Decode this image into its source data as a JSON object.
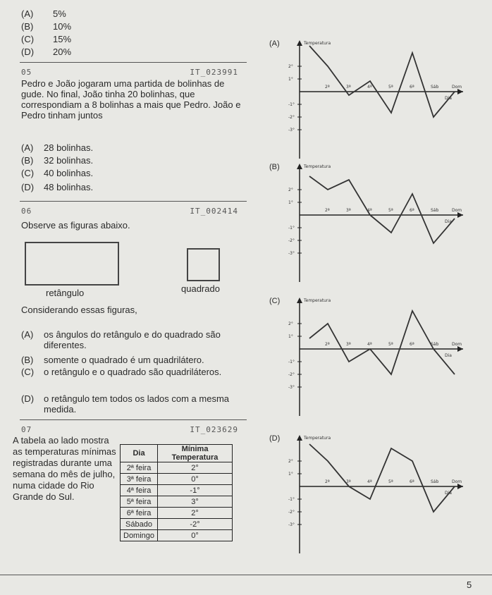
{
  "q4_options": [
    {
      "letter": "(A)",
      "text": "5%"
    },
    {
      "letter": "(B)",
      "text": "10%"
    },
    {
      "letter": "(C)",
      "text": "15%"
    },
    {
      "letter": "(D)",
      "text": "20%"
    }
  ],
  "q5": {
    "number": "05",
    "code": "IT_023991",
    "text": "Pedro e João jogaram uma partida de bolinhas de gude. No final, João tinha 20 bolinhas, que correspondiam a 8 bolinhas a mais que Pedro. João e Pedro tinham juntos",
    "options": [
      {
        "letter": "(A)",
        "text": "28 bolinhas."
      },
      {
        "letter": "(B)",
        "text": "32 bolinhas."
      },
      {
        "letter": "(C)",
        "text": "40 bolinhas."
      },
      {
        "letter": "(D)",
        "text": "48 bolinhas."
      }
    ]
  },
  "q6": {
    "number": "06",
    "code": "IT_002414",
    "text": "Observe as figuras abaixo.",
    "figures": [
      "retângulo",
      "quadrado"
    ],
    "prompt": "Considerando essas figuras,",
    "options": [
      {
        "letter": "(A)",
        "text": "os ângulos do retângulo e do quadrado são diferentes."
      },
      {
        "letter": "(B)",
        "text": "somente o quadrado é um quadrilátero."
      },
      {
        "letter": "(C)",
        "text": "o retângulo e o quadrado são quadriláteros."
      },
      {
        "letter": "(D)",
        "text": "o retângulo tem todos os lados com a mesma medida."
      }
    ]
  },
  "q7": {
    "number": "07",
    "code": "IT_023629",
    "text": "A tabela ao lado mostra as temperaturas mínimas registradas durante uma semana do mês de julho, numa cidade do Rio Grande do Sul.",
    "table": {
      "headers": [
        "Dia",
        "Mínima Temperatura"
      ],
      "rows": [
        [
          "2ª feira",
          "2°"
        ],
        [
          "3ª feira",
          "0°"
        ],
        [
          "4ª feira",
          "-1°"
        ],
        [
          "5ª feira",
          "3°"
        ],
        [
          "6ª feira",
          "2°"
        ],
        [
          "Sábado",
          "-2°"
        ],
        [
          "Domingo",
          "0°"
        ]
      ]
    }
  },
  "graphs": [
    {
      "label": "(A)",
      "axis_title": "Temperatura",
      "x_axis_title": "Dia",
      "x_labels": [
        "2ª",
        "3ª",
        "4ª",
        "5ª",
        "6ª",
        "Sáb",
        "Dom"
      ],
      "y_labels": [
        "2°",
        "1°",
        "-1°",
        "-2°",
        "-3°"
      ]
    },
    {
      "label": "(B)",
      "axis_title": "Temperatura",
      "x_axis_title": "Dia",
      "x_labels": [
        "2ª",
        "3ª",
        "4ª",
        "5ª",
        "6ª",
        "Sáb",
        "Dom"
      ],
      "y_labels": [
        "2°",
        "1°",
        "-1°",
        "-2°",
        "-3°"
      ]
    },
    {
      "label": "(C)",
      "axis_title": "Temperatura",
      "x_axis_title": "Dia",
      "x_labels": [
        "2ª",
        "3ª",
        "4ª",
        "5ª",
        "6ª",
        "Sáb",
        "Dom"
      ],
      "y_labels": [
        "2°",
        "1°",
        "-1°",
        "-2°",
        "-3°"
      ]
    },
    {
      "label": "(D)",
      "axis_title": "Temperatura",
      "x_axis_title": "Dia",
      "x_labels": [
        "2ª",
        "3ª",
        "4ª",
        "5ª",
        "6ª",
        "Sáb",
        "Dom"
      ],
      "y_labels": [
        "2°",
        "1°",
        "-1°",
        "-2°",
        "-3°"
      ]
    }
  ],
  "page_number": "5"
}
